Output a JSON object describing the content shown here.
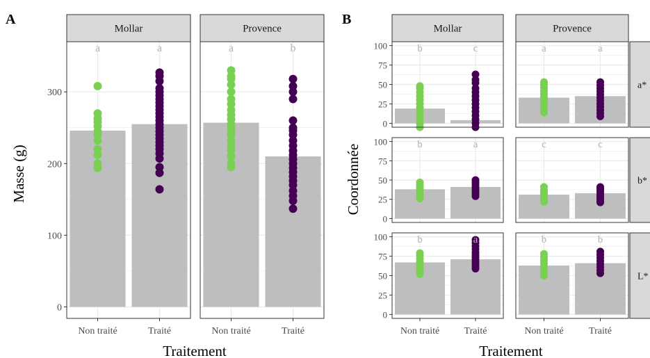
{
  "colors": {
    "non_traite": "#7ad151",
    "traite": "#440154",
    "bar": "#bebebe",
    "strip": "#d9d9d9",
    "grid": "#ebebeb",
    "letters": "#b3b3b3"
  },
  "panel_labels": {
    "a": "A",
    "b": "B"
  },
  "chart_data": [
    {
      "type": "bar",
      "panel": "A",
      "xlabel": "Traitement",
      "ylabel": "Masse (g)",
      "ylim": [
        0,
        370
      ],
      "yticks": [
        0,
        100,
        200,
        300
      ],
      "categories": [
        "Non traité",
        "Traité"
      ],
      "facets": [
        {
          "name": "Mollar",
          "values": [
            246,
            255
          ],
          "letters": [
            "a",
            "a"
          ],
          "points": [
            [
              194,
              200,
              212,
              220,
              232,
              240,
              245,
              252,
              258,
              263,
              270,
              308
            ],
            [
              164,
              187,
              195,
              207,
              214,
              220,
              225,
              230,
              235,
              240,
              245,
              250,
              255,
              260,
              265,
              270,
              275,
              280,
              285,
              290,
              295,
              300,
              305,
              315,
              322,
              327
            ]
          ]
        },
        {
          "name": "Provence",
          "values": [
            257,
            210
          ],
          "letters": [
            "a",
            "b"
          ],
          "points": [
            [
              195,
              200,
              210,
              218,
              225,
              232,
              240,
              245,
              250,
              255,
              262,
              268,
              275,
              283,
              290,
              300,
              310,
              318,
              322,
              330
            ],
            [
              137,
              148,
              155,
              162,
              170,
              176,
              182,
              188,
              194,
              200,
              206,
              212,
              218,
              225,
              232,
              240,
              246,
              250,
              260,
              290,
              300,
              308,
              318
            ]
          ]
        }
      ]
    },
    {
      "type": "bar",
      "panel": "B",
      "xlabel": "Traitement",
      "ylabel": "Coordonnée",
      "ylim": [
        -5,
        105
      ],
      "yticks": [
        0,
        25,
        50,
        75,
        100
      ],
      "categories": [
        "Non traité",
        "Traité"
      ],
      "facet_columns": [
        "Mollar",
        "Provence"
      ],
      "facet_rows": [
        {
          "name": "a*",
          "cells": [
            {
              "values": [
                19,
                4
              ],
              "letters": [
                "b",
                "c"
              ],
              "points": [
                [
                  -5,
                  0,
                  5,
                  10,
                  15,
                  20,
                  25,
                  30,
                  35,
                  40,
                  45,
                  48
                ],
                [
                  -5,
                  0,
                  5,
                  10,
                  15,
                  20,
                  25,
                  30,
                  35,
                  40,
                  45,
                  52,
                  56,
                  63
                ]
              ]
            },
            {
              "values": [
                33,
                35
              ],
              "letters": [
                "a",
                "a"
              ],
              "points": [
                [
                  14,
                  18,
                  22,
                  26,
                  30,
                  34,
                  38,
                  42,
                  46,
                  50,
                  53
                ],
                [
                  9,
                  13,
                  17,
                  21,
                  25,
                  29,
                  33,
                  37,
                  41,
                  45,
                  49,
                  53
                ]
              ]
            }
          ]
        },
        {
          "name": "b*",
          "cells": [
            {
              "values": [
                38,
                41
              ],
              "letters": [
                "b",
                "a"
              ],
              "points": [
                [
                  26,
                  29,
                  32,
                  35,
                  38,
                  41,
                  44,
                  47
                ],
                [
                  29,
                  32,
                  35,
                  38,
                  41,
                  44,
                  47,
                  50
                ]
              ]
            },
            {
              "values": [
                31,
                33
              ],
              "letters": [
                "c",
                "c"
              ],
              "points": [
                [
                  22,
                  25,
                  28,
                  31,
                  34,
                  37,
                  41
                ],
                [
                  21,
                  24,
                  27,
                  30,
                  33,
                  36,
                  39,
                  41
                ]
              ]
            }
          ]
        },
        {
          "name": "L*",
          "cells": [
            {
              "values": [
                67,
                71
              ],
              "letters": [
                "b",
                "a"
              ],
              "points": [
                [
                  52,
                  56,
                  60,
                  64,
                  68,
                  72,
                  76,
                  79
                ],
                [
                  59,
                  62,
                  65,
                  68,
                  71,
                  74,
                  77,
                  80,
                  84,
                  88,
                  92,
                  96
                ]
              ]
            },
            {
              "values": [
                63,
                66
              ],
              "letters": [
                "b",
                "b"
              ],
              "points": [
                [
                  50,
                  54,
                  58,
                  62,
                  66,
                  70,
                  74,
                  78
                ],
                [
                  53,
                  57,
                  61,
                  65,
                  69,
                  73,
                  77,
                  81
                ]
              ]
            }
          ]
        }
      ]
    }
  ]
}
